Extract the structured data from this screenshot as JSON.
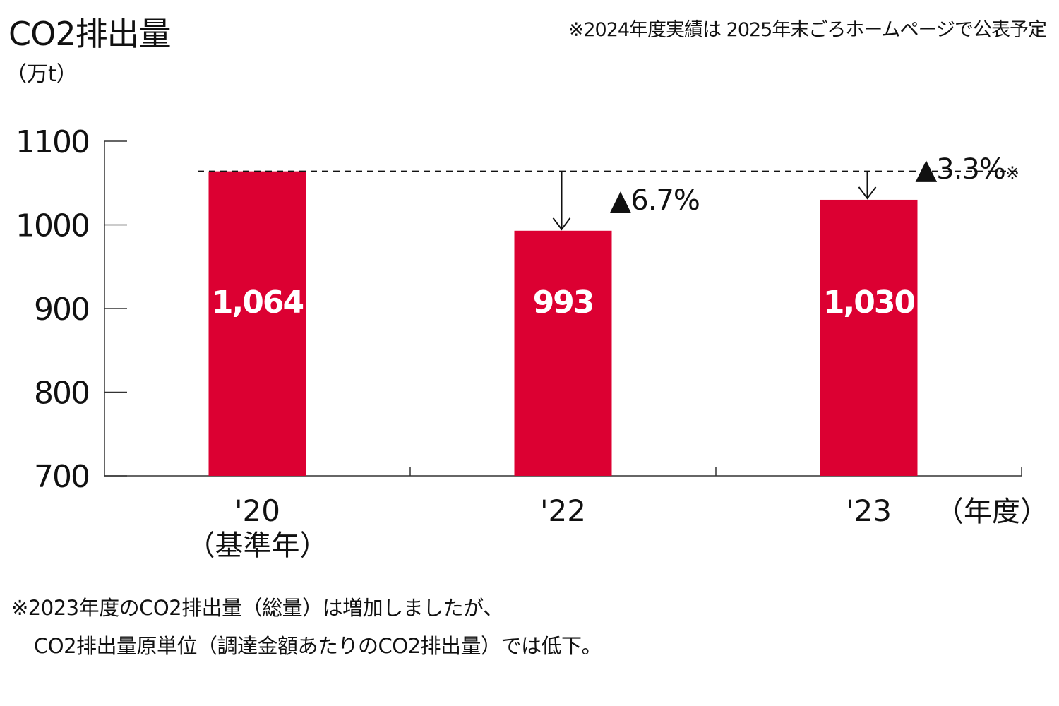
{
  "header": {
    "title": "CO2排出量",
    "unit": "（万t）",
    "note": "※2024年度実績は 2025年末ごろホームページで公表予定"
  },
  "footnote": {
    "line1": "※2023年度のCO2排出量（総量）は増加しましたが、",
    "line2": "CO2排出量原単位（調達金額あたりのCO2排出量）では低下。"
  },
  "colors": {
    "bar": "#DC0032",
    "axis": "#333333",
    "text": "#111111"
  },
  "chart_data": {
    "type": "bar",
    "categories": [
      "'20",
      "'22",
      "'23"
    ],
    "category_sublabels": [
      "（基準年）",
      "",
      ""
    ],
    "values": [
      1064,
      993,
      1030
    ],
    "data_labels": [
      "1,064",
      "993",
      "1,030"
    ],
    "ylabel": "（万t）",
    "xlabel": "（年度）",
    "ylim": [
      700,
      1100
    ],
    "yticks": [
      700,
      800,
      900,
      1000,
      1100
    ],
    "grid": false,
    "reference_line": {
      "value": 1064,
      "style": "dashed"
    },
    "annotations": [
      {
        "category": "'22",
        "text": "▲6.7%"
      },
      {
        "category": "'23",
        "text": "▲3.3%",
        "mark": "※"
      }
    ]
  }
}
